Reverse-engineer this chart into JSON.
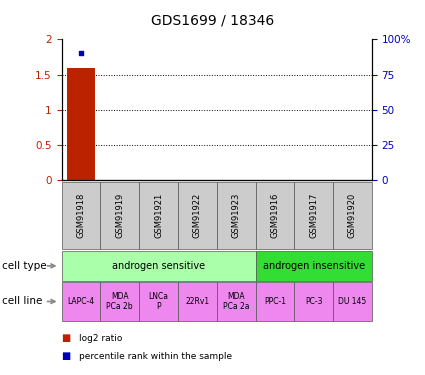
{
  "title": "GDS1699 / 18346",
  "samples": [
    "GSM91918",
    "GSM91919",
    "GSM91921",
    "GSM91922",
    "GSM91923",
    "GSM91916",
    "GSM91917",
    "GSM91920"
  ],
  "bar_values": [
    1.6,
    0,
    0,
    0,
    0,
    0,
    0,
    0
  ],
  "scatter_x": [
    0
  ],
  "scatter_y": [
    90
  ],
  "ylim_left": [
    0,
    2
  ],
  "ylim_right": [
    0,
    100
  ],
  "yticks_left": [
    0,
    0.5,
    1,
    1.5,
    2
  ],
  "yticks_right": [
    0,
    25,
    50,
    75,
    100
  ],
  "ytick_labels_left": [
    "0",
    "0.5",
    "1",
    "1.5",
    "2"
  ],
  "ytick_labels_right": [
    "0",
    "25",
    "50",
    "75",
    "100%"
  ],
  "cell_type_groups": [
    {
      "label": "androgen sensitive",
      "start": 0,
      "end": 5,
      "color": "#AAFFAA"
    },
    {
      "label": "androgen insensitive",
      "start": 5,
      "end": 8,
      "color": "#33DD33"
    }
  ],
  "cell_lines": [
    "LAPC-4",
    "MDA\nPCa 2b",
    "LNCa\nP",
    "22Rv1",
    "MDA\nPCa 2a",
    "PPC-1",
    "PC-3",
    "DU 145"
  ],
  "cell_line_color": "#EE88EE",
  "gsm_box_color": "#CCCCCC",
  "bar_color": "#BB2200",
  "scatter_color": "#0000BB",
  "legend_bar_label": "log2 ratio",
  "legend_scatter_label": "percentile rank within the sample",
  "cell_type_label": "cell type",
  "cell_line_label": "cell line",
  "dotted_line_color": "#000000",
  "title_fontsize": 10,
  "tick_fontsize": 7.5,
  "gsm_fontsize": 6,
  "cell_fontsize": 7,
  "label_fontsize": 7.5
}
